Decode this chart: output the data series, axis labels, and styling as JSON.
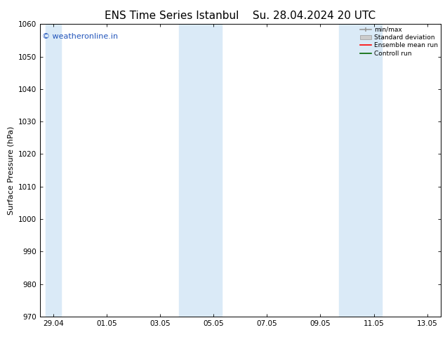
{
  "title_left": "ENS Time Series Istanbul",
  "title_right": "Su. 28.04.2024 20 UTC",
  "ylabel": "Surface Pressure (hPa)",
  "ylim": [
    970,
    1060
  ],
  "yticks": [
    970,
    980,
    990,
    1000,
    1010,
    1020,
    1030,
    1040,
    1050,
    1060
  ],
  "x_tick_labels": [
    "29.04",
    "01.05",
    "03.05",
    "05.05",
    "07.05",
    "09.05",
    "11.05",
    "13.05"
  ],
  "x_tick_positions": [
    0,
    2,
    4,
    6,
    8,
    10,
    12,
    14
  ],
  "shade_bands": [
    {
      "xmin": -0.3,
      "xmax": 0.3
    },
    {
      "xmin": 4.7,
      "xmax": 6.3
    },
    {
      "xmin": 10.7,
      "xmax": 12.3
    }
  ],
  "shade_color": "#daeaf7",
  "watermark_text": "© weatheronline.in",
  "watermark_color": "#2255bb",
  "legend_labels": [
    "min/max",
    "Standard deviation",
    "Ensemble mean run",
    "Controll run"
  ],
  "background_color": "#ffffff",
  "title_fontsize": 11,
  "label_fontsize": 8,
  "tick_fontsize": 7.5,
  "xmin": -0.5,
  "xmax": 14.5
}
